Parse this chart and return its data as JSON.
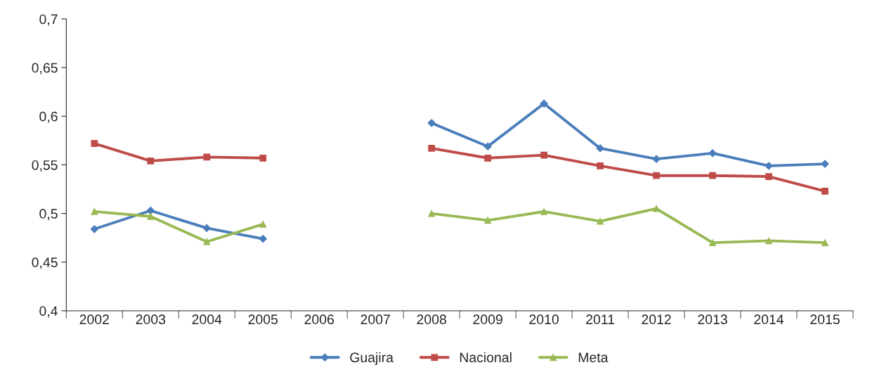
{
  "chart_data": {
    "type": "line",
    "categories": [
      "2002",
      "2003",
      "2004",
      "2005",
      "2006",
      "2007",
      "2008",
      "2009",
      "2010",
      "2011",
      "2012",
      "2013",
      "2014",
      "2015"
    ],
    "series": [
      {
        "name": "Guajira",
        "color": "#4a7ebb",
        "marker": "diamond",
        "values": [
          0.484,
          0.503,
          0.485,
          0.474,
          null,
          null,
          0.593,
          0.569,
          0.613,
          0.567,
          0.556,
          0.562,
          0.549,
          0.551
        ]
      },
      {
        "name": "Nacional",
        "color": "#be4b48",
        "marker": "square",
        "values": [
          0.572,
          0.554,
          0.558,
          0.557,
          null,
          null,
          0.567,
          0.557,
          0.56,
          0.549,
          0.539,
          0.539,
          0.538,
          0.523
        ]
      },
      {
        "name": "Meta",
        "color": "#98b954",
        "marker": "triangle",
        "values": [
          0.502,
          0.497,
          0.471,
          0.489,
          null,
          null,
          0.5,
          0.493,
          0.502,
          0.492,
          0.505,
          0.47,
          0.472,
          0.47
        ]
      }
    ],
    "ylim": [
      0.4,
      0.7
    ],
    "yticks": [
      {
        "value": 0.4,
        "label": "0,4"
      },
      {
        "value": 0.45,
        "label": "0,45"
      },
      {
        "value": 0.5,
        "label": "0,5"
      },
      {
        "value": 0.55,
        "label": "0,55"
      },
      {
        "value": 0.6,
        "label": "0,6"
      },
      {
        "value": 0.65,
        "label": "0,65"
      },
      {
        "value": 0.7,
        "label": "0,7"
      }
    ],
    "grid": false,
    "legend": "bottom",
    "line_style": "solid"
  }
}
